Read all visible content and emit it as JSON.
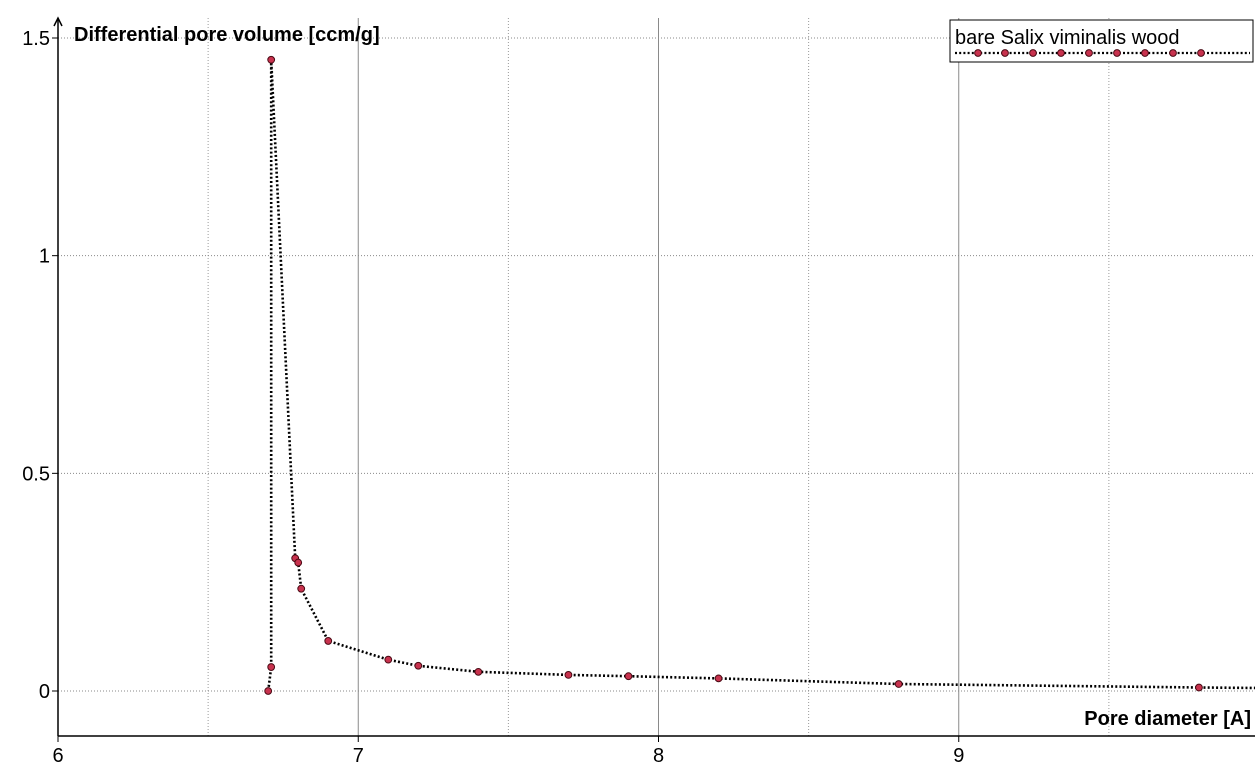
{
  "chart_data": {
    "type": "line",
    "title": "",
    "xlabel": "Pore diameter [A]",
    "ylabel": "Differential pore volume [ccm/g]",
    "xlim": [
      6,
      10
    ],
    "ylim": [
      0,
      1.5
    ],
    "x_ticks": [
      6,
      7,
      8,
      9
    ],
    "x_tick_labels": [
      "6",
      "7",
      "8",
      "9"
    ],
    "y_ticks": [
      0,
      0.5,
      1,
      1.5
    ],
    "y_tick_labels": [
      "0",
      "0.5",
      "1",
      "1.5"
    ],
    "grid": true,
    "legend_position": "top-right",
    "series": [
      {
        "name": "bare Salix viminalis wood",
        "line_color": "#000000",
        "marker_color": "#c8324e",
        "marker_edge": "#4a0a14",
        "line_style": "dotted",
        "x": [
          6.7,
          6.71,
          6.71,
          6.79,
          6.8,
          6.81,
          6.9,
          7.1,
          7.2,
          7.4,
          7.7,
          7.9,
          8.2,
          8.8,
          9.8,
          10.0
        ],
        "y": [
          0.0,
          0.055,
          1.45,
          0.305,
          0.295,
          0.235,
          0.115,
          0.072,
          0.058,
          0.044,
          0.037,
          0.034,
          0.029,
          0.016,
          0.008,
          0.007
        ]
      }
    ]
  }
}
